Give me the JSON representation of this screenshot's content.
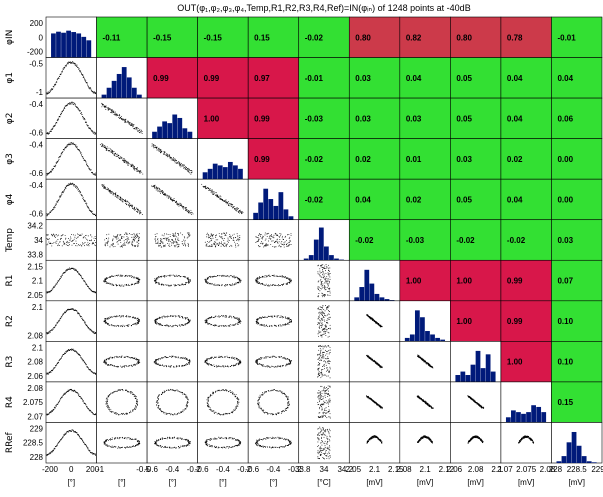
{
  "chart_data": {
    "type": "scatter-matrix",
    "title": "OUT(φ₁,φ₂,φ₃,φ₄,Temp,R1,R2,R3,R4,Ref)=IN(φᵢₙ) of 1248 points at -40dB",
    "variables": [
      {
        "label": "φIN",
        "unit": "[°]",
        "yticks": [
          "200",
          "0",
          "-200"
        ],
        "xticks": [
          "-200",
          "0",
          "200"
        ]
      },
      {
        "label": "φ1",
        "unit": "[°]",
        "yticks": [
          "-0.5",
          "-1"
        ],
        "xticks": [
          "-1",
          "-0.5"
        ]
      },
      {
        "label": "φ2",
        "unit": "[°]",
        "yticks": [
          "-0.4",
          "-0.6"
        ],
        "xticks": [
          "-0.6",
          "-0.4",
          "-0.2"
        ]
      },
      {
        "label": "φ3",
        "unit": "[°]",
        "yticks": [
          "-0.4",
          "-0.6"
        ],
        "xticks": [
          "-0.6",
          "-0.4",
          "-0.2"
        ]
      },
      {
        "label": "φ4",
        "unit": "[°]",
        "yticks": [
          "-0.4",
          "-0.6"
        ],
        "xticks": [
          "-0.6",
          "-0.4",
          "-0.2"
        ]
      },
      {
        "label": "Temp",
        "unit": "[°C]",
        "yticks": [
          "34.2",
          "34",
          "33.8"
        ],
        "xticks": [
          "33.8",
          "34",
          "34.2"
        ]
      },
      {
        "label": "R1",
        "unit": "[mV]",
        "yticks": [
          "2.15",
          "2.1",
          "2.05"
        ],
        "xticks": [
          "2.05",
          "2.1",
          "2.15"
        ]
      },
      {
        "label": "R2",
        "unit": "[mV]",
        "yticks": [
          "2.1",
          "2.08"
        ],
        "xticks": [
          "2.08",
          "2.1",
          "2.12"
        ]
      },
      {
        "label": "R3",
        "unit": "[mV]",
        "yticks": [
          "2.1",
          "2.08",
          "2.06"
        ],
        "xticks": [
          "2.06",
          "2.08",
          "2.1"
        ]
      },
      {
        "label": "R4",
        "unit": "[mV]",
        "yticks": [
          "2.08",
          "2.075",
          "2.07"
        ],
        "xticks": [
          "2.07",
          "2.075",
          "2.08"
        ]
      },
      {
        "label": "RRef",
        "unit": "[mV]",
        "yticks": [
          "229",
          "228.5",
          "228"
        ],
        "xticks": [
          "228",
          "228.5",
          "229"
        ]
      }
    ],
    "correlations": [
      [
        null,
        -0.11,
        -0.15,
        -0.15,
        0.15,
        -0.02,
        0.8,
        0.82,
        0.8,
        0.78,
        -0.01
      ],
      [
        null,
        null,
        0.99,
        0.99,
        0.97,
        -0.01,
        0.03,
        0.04,
        0.05,
        0.04,
        0.04
      ],
      [
        null,
        null,
        null,
        1.0,
        0.99,
        -0.03,
        0.03,
        0.03,
        0.05,
        0.04,
        0.06
      ],
      [
        null,
        null,
        null,
        null,
        0.99,
        -0.02,
        0.02,
        0.01,
        0.03,
        0.02,
        -0.0
      ],
      [
        null,
        null,
        null,
        null,
        null,
        -0.02,
        0.04,
        0.02,
        0.05,
        0.04,
        -0.0
      ],
      [
        null,
        null,
        null,
        null,
        null,
        null,
        -0.02,
        -0.03,
        -0.02,
        -0.02,
        0.03
      ],
      [
        null,
        null,
        null,
        null,
        null,
        null,
        null,
        1.0,
        1.0,
        0.99,
        0.07
      ],
      [
        null,
        null,
        null,
        null,
        null,
        null,
        null,
        null,
        1.0,
        0.99,
        0.1
      ],
      [
        null,
        null,
        null,
        null,
        null,
        null,
        null,
        null,
        null,
        1.0,
        0.1
      ],
      [
        null,
        null,
        null,
        null,
        null,
        null,
        null,
        null,
        null,
        null,
        0.15
      ]
    ],
    "colors": {
      "high_corr": "#d8174a",
      "mid_corr": "#cc3a4a",
      "low_corr": "#33e033",
      "histogram": "#001a7a",
      "scatter": "#000000"
    },
    "grid": false,
    "legend": "none"
  }
}
